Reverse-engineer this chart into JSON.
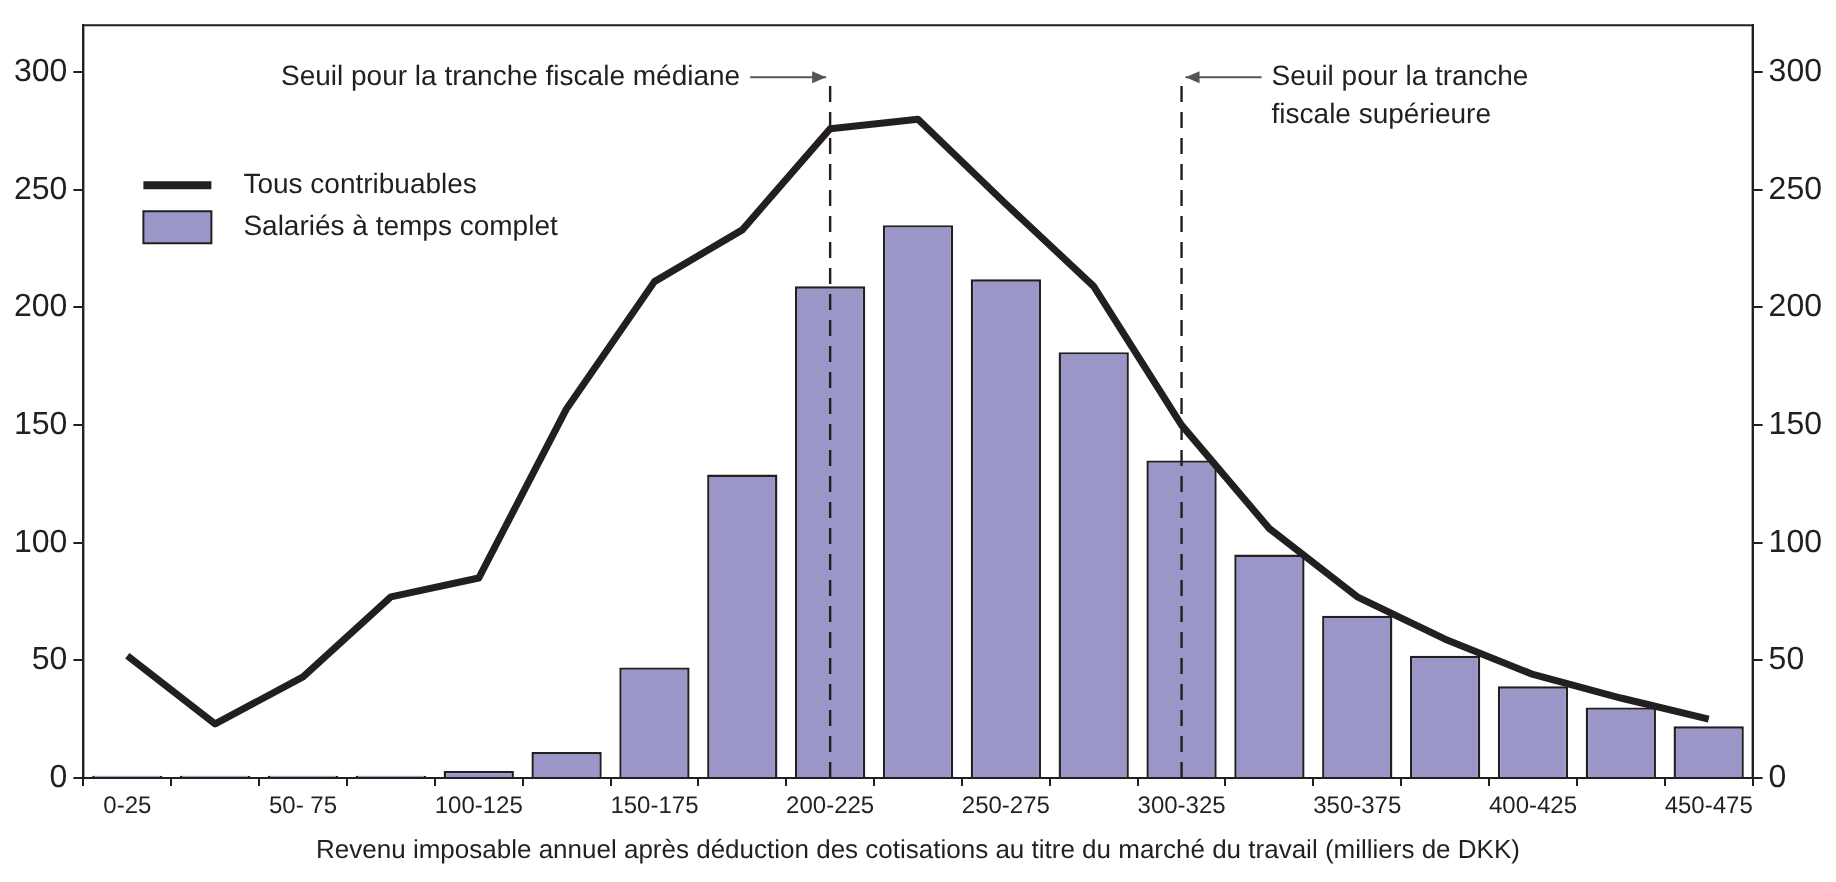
{
  "chart_data": {
    "type": "bar",
    "xlabel": "Revenu imposable annuel après déduction des cotisations au titre du marché du travail (milliers de DKK)",
    "categories": [
      "0-25",
      null,
      "50- 75",
      null,
      "100-125",
      null,
      "150-175",
      null,
      "200-225",
      null,
      "250-275",
      null,
      "300-325",
      null,
      "350-375",
      null,
      "400-425",
      null,
      "450-475"
    ],
    "series": [
      {
        "name": "Tous contribuables",
        "type": "line",
        "color": "#231f20",
        "values": [
          52,
          23,
          43,
          77,
          85,
          157,
          211,
          233,
          276,
          280,
          244,
          209,
          150,
          106,
          77,
          59,
          44,
          34,
          25
        ]
      },
      {
        "name": "Salariés à temps complet",
        "color": "#9b96c8",
        "values": [
          1,
          1,
          1,
          1,
          3,
          11,
          47,
          129,
          209,
          235,
          212,
          181,
          135,
          95,
          69,
          52,
          39,
          30,
          22
        ]
      }
    ],
    "ylim": [
      0,
      320
    ],
    "yticks": [
      0,
      50,
      100,
      150,
      200,
      250,
      300
    ],
    "y2lim": [
      0,
      320
    ],
    "y2ticks": [
      0,
      50,
      100,
      150,
      200,
      250,
      300
    ],
    "ref_lines": [
      {
        "axis": "x",
        "value": "200-225",
        "label": "Seuil pour la tranche fiscale médiane",
        "color": "#231f20",
        "line_style": "dashed"
      },
      {
        "axis": "x",
        "value": "300-325",
        "label": "Seuil pour la tranche fiscale supérieure",
        "color": "#231f20",
        "line_style": "dashed"
      }
    ],
    "legend": "top left",
    "grid": false,
    "marker": "none"
  }
}
